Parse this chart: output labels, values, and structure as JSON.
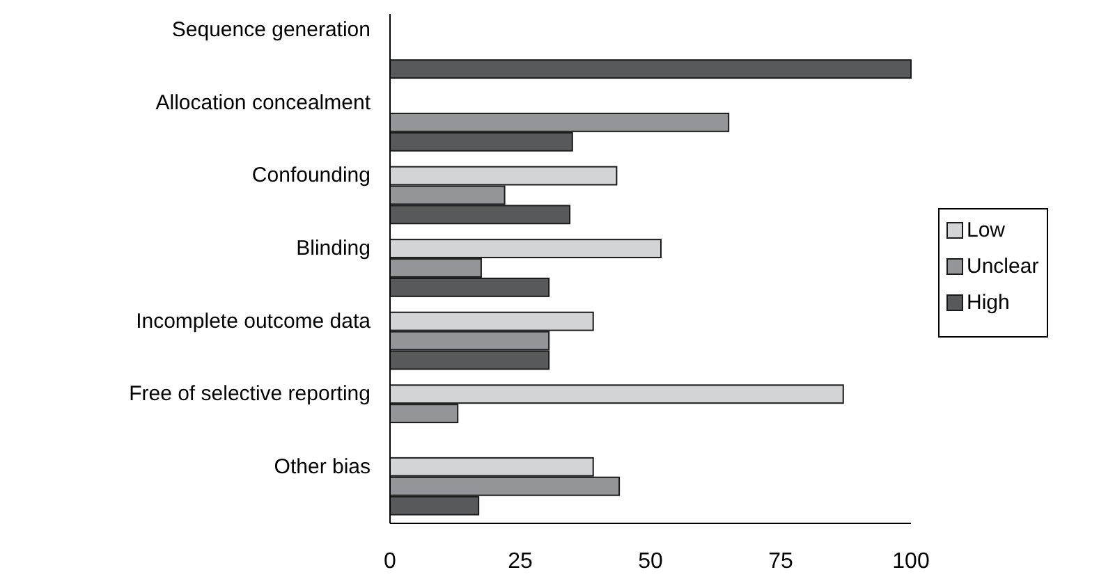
{
  "chart_data": {
    "type": "bar",
    "orientation": "horizontal",
    "categories": [
      "Sequence generation",
      "Allocation concealment",
      "Confounding",
      "Blinding",
      "Incomplete outcome data",
      "Free of selective reporting",
      "Other bias"
    ],
    "series": [
      {
        "name": "Low",
        "color": "#d3d4d6",
        "values": [
          null,
          null,
          43.5,
          52,
          39,
          87,
          39
        ]
      },
      {
        "name": "Unclear",
        "color": "#949598",
        "values": [
          null,
          65,
          22,
          17.5,
          30.5,
          13,
          44
        ]
      },
      {
        "name": "High",
        "color": "#58595b",
        "values": [
          100,
          35,
          34.5,
          30.5,
          30.5,
          null,
          17
        ]
      }
    ],
    "xlim": [
      0,
      100
    ],
    "xticks": [
      0,
      25,
      50,
      75,
      100
    ],
    "grid": false,
    "legend": "right"
  }
}
